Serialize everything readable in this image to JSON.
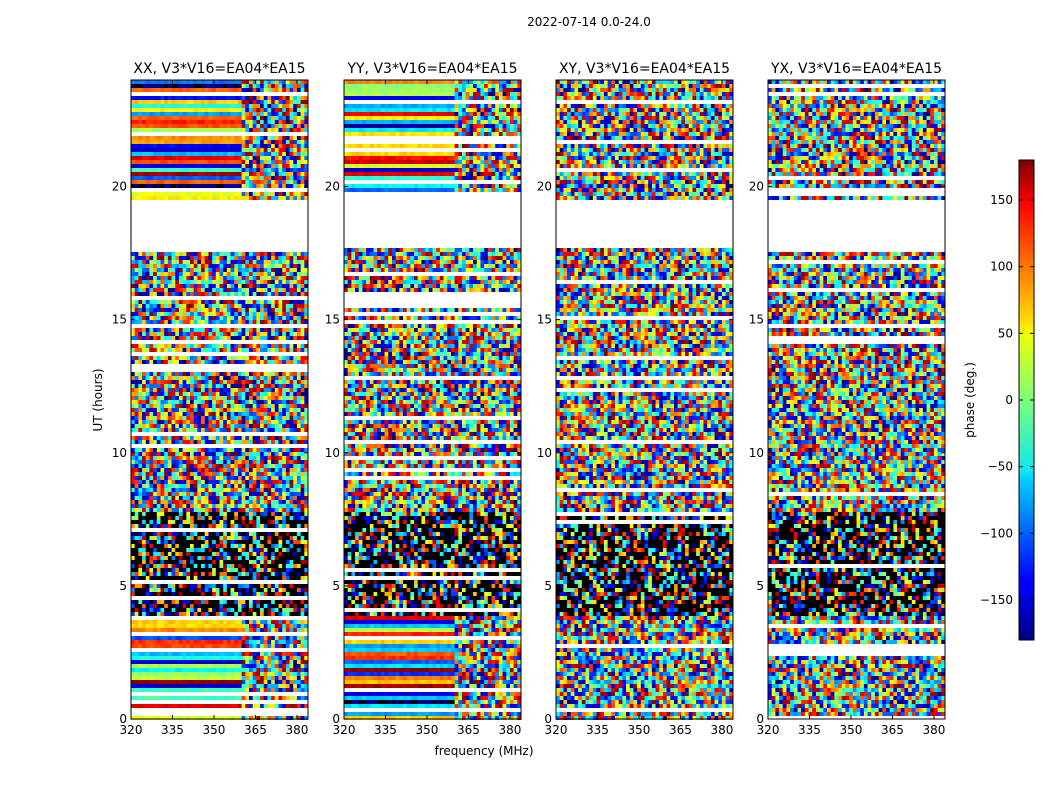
{
  "figure_title": "2022-07-14 0.0-24.0",
  "chart_data": [
    {
      "type": "heatmap",
      "title": "XX, V3*V16=EA04*EA15",
      "polarization": "XX",
      "xlabel": "frequency (MHz)",
      "ylabel": "UT (hours)",
      "xlim": [
        320,
        384
      ],
      "ylim": [
        0,
        24
      ],
      "xticks": [
        320,
        335,
        350,
        365,
        380
      ],
      "yticks": [
        0,
        5,
        10,
        15,
        20
      ],
      "grid": false,
      "description_bands": [
        {
          "ut": [
            0,
            4
          ],
          "pattern": "smooth phase (red/blue stripes) below 360 MHz, noisy above"
        },
        {
          "ut": [
            4,
            8
          ],
          "pattern": "dense flagged/dark stripes"
        },
        {
          "ut": [
            8,
            17
          ],
          "pattern": "random noisy phase"
        },
        {
          "ut": [
            17.7,
            19.5
          ],
          "pattern": "no data (blank)"
        },
        {
          "ut": [
            19.5,
            24
          ],
          "pattern": "smooth phase (red/cyan) below 360 MHz, noisy above"
        }
      ]
    },
    {
      "type": "heatmap",
      "title": "YY, V3*V16=EA04*EA15",
      "polarization": "YY",
      "xlabel": "frequency (MHz)",
      "ylabel": "UT (hours)",
      "xlim": [
        320,
        384
      ],
      "ylim": [
        0,
        24
      ],
      "xticks": [
        320,
        335,
        350,
        365,
        380
      ],
      "yticks": [
        0,
        5,
        10,
        15,
        20
      ],
      "grid": false
    },
    {
      "type": "heatmap",
      "title": "XY, V3*V16=EA04*EA15",
      "polarization": "XY",
      "xlabel": "frequency (MHz)",
      "ylabel": "UT (hours)",
      "xlim": [
        320,
        384
      ],
      "ylim": [
        0,
        24
      ],
      "xticks": [
        320,
        335,
        350,
        365,
        380
      ],
      "yticks": [
        0,
        5,
        10,
        15,
        20
      ],
      "grid": false
    },
    {
      "type": "heatmap",
      "title": "YX, V3*V16=EA04*EA15",
      "polarization": "YX",
      "xlabel": "frequency (MHz)",
      "ylabel": "UT (hours)",
      "xlim": [
        320,
        384
      ],
      "ylim": [
        0,
        24
      ],
      "xticks": [
        320,
        335,
        350,
        365,
        380
      ],
      "yticks": [
        0,
        5,
        10,
        15,
        20
      ],
      "grid": false
    }
  ],
  "colorbar": {
    "label": "phase (deg.)",
    "range": [
      -180,
      180
    ],
    "ticks": [
      -150,
      -100,
      -50,
      0,
      50,
      100,
      150
    ],
    "tick_labels": [
      "−150",
      "−100",
      "−50",
      "0",
      "50",
      "100",
      "150"
    ],
    "colormap": "jet"
  },
  "shared_xlabel": "frequency (MHz)",
  "shared_ylabel": "UT (hours)"
}
